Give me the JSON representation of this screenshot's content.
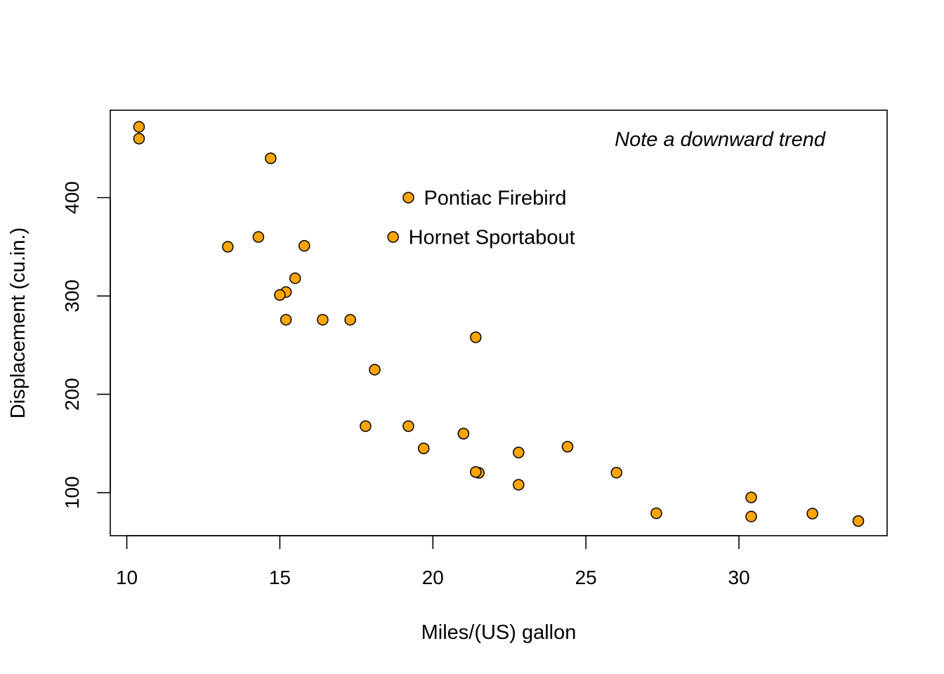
{
  "chart_data": {
    "type": "scatter",
    "title": "",
    "xlabel": "Miles/(US) gallon",
    "ylabel": "Displacement (cu.in.)",
    "xlim": [
      9.46,
      34.84
    ],
    "ylim": [
      56.2,
      488.9
    ],
    "xticks": [
      10,
      15,
      20,
      25,
      30
    ],
    "yticks": [
      100,
      200,
      300,
      400
    ],
    "grid": false,
    "legend": "none",
    "point_color": "#FFA500",
    "point_edge_color": "#000000",
    "annotation": "Note a downward trend",
    "points": [
      {
        "x": 21.0,
        "y": 160
      },
      {
        "x": 21.0,
        "y": 160
      },
      {
        "x": 22.8,
        "y": 108
      },
      {
        "x": 21.4,
        "y": 258
      },
      {
        "x": 18.7,
        "y": 360
      },
      {
        "x": 18.1,
        "y": 225
      },
      {
        "x": 14.3,
        "y": 360
      },
      {
        "x": 24.4,
        "y": 146.7
      },
      {
        "x": 22.8,
        "y": 140.8
      },
      {
        "x": 19.2,
        "y": 167.6
      },
      {
        "x": 17.8,
        "y": 167.6
      },
      {
        "x": 16.4,
        "y": 275.8
      },
      {
        "x": 17.3,
        "y": 275.8
      },
      {
        "x": 15.2,
        "y": 275.8
      },
      {
        "x": 10.4,
        "y": 472
      },
      {
        "x": 10.4,
        "y": 460
      },
      {
        "x": 14.7,
        "y": 440
      },
      {
        "x": 32.4,
        "y": 78.7
      },
      {
        "x": 30.4,
        "y": 75.7
      },
      {
        "x": 33.9,
        "y": 71.1
      },
      {
        "x": 21.5,
        "y": 120.1
      },
      {
        "x": 15.5,
        "y": 318
      },
      {
        "x": 15.2,
        "y": 304
      },
      {
        "x": 13.3,
        "y": 350
      },
      {
        "x": 19.2,
        "y": 400
      },
      {
        "x": 27.3,
        "y": 79
      },
      {
        "x": 26.0,
        "y": 120.3
      },
      {
        "x": 30.4,
        "y": 95.1
      },
      {
        "x": 15.8,
        "y": 351
      },
      {
        "x": 19.7,
        "y": 145
      },
      {
        "x": 15.0,
        "y": 301
      },
      {
        "x": 21.4,
        "y": 121
      }
    ],
    "labeled_points": [
      {
        "label": "Pontiac Firebird",
        "x": 19.2,
        "y": 400
      },
      {
        "label": "Hornet Sportabout",
        "x": 18.7,
        "y": 360
      }
    ]
  }
}
